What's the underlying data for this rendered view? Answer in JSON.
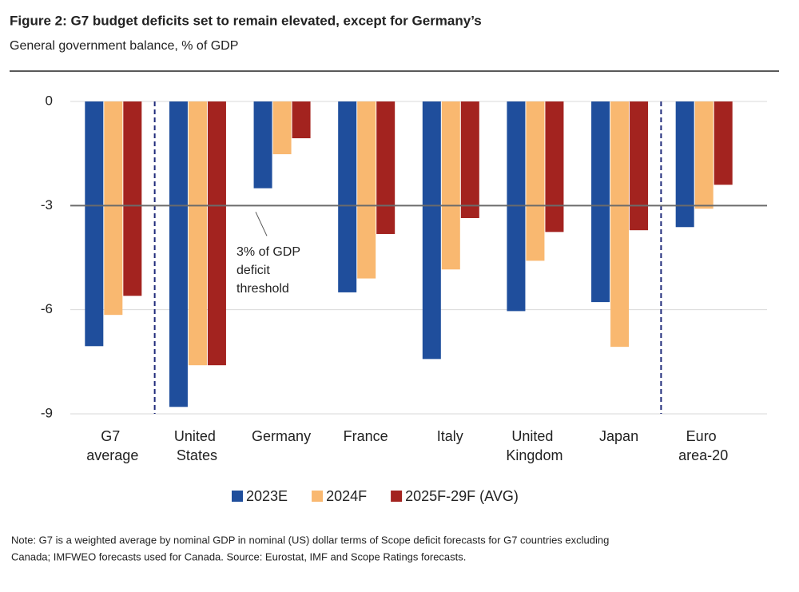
{
  "chart_data": {
    "type": "bar",
    "title": "Figure 2: G7 budget deficits set to remain elevated, except for Germany’s",
    "subtitle": "General government balance, % of GDP",
    "categories": [
      "G7 average",
      "United States",
      "Germany",
      "France",
      "Italy",
      "United Kingdom",
      "Japan",
      "Euro area-20"
    ],
    "series": [
      {
        "name": "2023E",
        "color": "#1f4e9c",
        "values": [
          -7.05,
          -8.8,
          -2.5,
          -5.5,
          -7.42,
          -6.04,
          -5.78,
          -3.62
        ]
      },
      {
        "name": "2024F",
        "color": "#f9b870",
        "values": [
          -6.15,
          -7.6,
          -1.52,
          -5.1,
          -4.84,
          -4.59,
          -7.07,
          -3.09
        ]
      },
      {
        "name": "2025F-29F (AVG)",
        "color": "#a3231f",
        "values": [
          -5.6,
          -7.6,
          -1.06,
          -3.82,
          -3.36,
          -3.76,
          -3.71,
          -2.4
        ]
      }
    ],
    "ylim": [
      -9,
      0
    ],
    "yticks": [
      0,
      -3,
      -6,
      -9
    ],
    "grid": true,
    "reference_line": {
      "value": -3,
      "label": [
        "3% of GDP",
        "deficit",
        "threshold"
      ]
    },
    "note": [
      "Note: G7 is a weighted average by nominal GDP in nominal (US) dollar terms of Scope deficit forecasts for G7 countries excluding",
      "Canada; IMFWEO forecasts used for Canada. Source: Eurostat, IMF and Scope Ratings forecasts."
    ]
  }
}
